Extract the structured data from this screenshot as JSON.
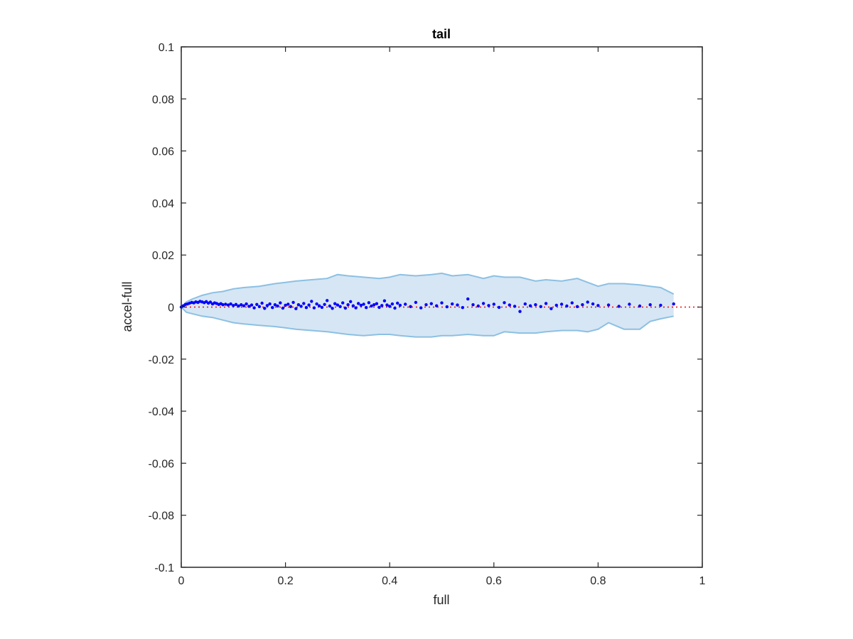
{
  "chart_data": {
    "type": "scatter",
    "title": "tail",
    "xlabel": "full",
    "ylabel": "accel-full",
    "xlim": [
      0,
      1
    ],
    "ylim": [
      -0.1,
      0.1
    ],
    "xticks": [
      0,
      0.2,
      0.4,
      0.6,
      0.8,
      1
    ],
    "xtick_labels": [
      "0",
      "0.2",
      "0.4",
      "0.6",
      "0.8",
      "1"
    ],
    "yticks": [
      -0.1,
      -0.08,
      -0.06,
      -0.04,
      -0.02,
      0,
      0.02,
      0.04,
      0.06,
      0.08,
      0.1
    ],
    "ytick_labels": [
      "-0.1",
      "-0.08",
      "-0.06",
      "-0.04",
      "-0.02",
      "0",
      "0.02",
      "0.04",
      "0.06",
      "0.08",
      "0.1"
    ],
    "grid": false,
    "reference_line": {
      "y": 0,
      "style": "dotted",
      "color": "#ff0000"
    },
    "band": {
      "fill_color": "#d6e6f4",
      "edge_color": "#8cc0e3",
      "x": [
        0,
        0.01,
        0.02,
        0.04,
        0.06,
        0.08,
        0.1,
        0.12,
        0.15,
        0.18,
        0.2,
        0.22,
        0.25,
        0.28,
        0.3,
        0.32,
        0.35,
        0.38,
        0.4,
        0.42,
        0.45,
        0.48,
        0.5,
        0.52,
        0.55,
        0.58,
        0.6,
        0.62,
        0.65,
        0.68,
        0.7,
        0.73,
        0.76,
        0.78,
        0.8,
        0.82,
        0.85,
        0.88,
        0.9,
        0.92,
        0.945
      ],
      "upper": [
        0,
        0.002,
        0.003,
        0.0045,
        0.0055,
        0.006,
        0.007,
        0.0075,
        0.008,
        0.009,
        0.0095,
        0.01,
        0.0105,
        0.011,
        0.0125,
        0.012,
        0.0115,
        0.011,
        0.0115,
        0.0125,
        0.012,
        0.0125,
        0.013,
        0.012,
        0.0125,
        0.011,
        0.012,
        0.0115,
        0.0115,
        0.01,
        0.0105,
        0.01,
        0.011,
        0.0095,
        0.008,
        0.009,
        0.009,
        0.0085,
        0.008,
        0.0075,
        0.005
      ],
      "lower": [
        0,
        -0.002,
        -0.0025,
        -0.0035,
        -0.004,
        -0.005,
        -0.006,
        -0.0065,
        -0.007,
        -0.0075,
        -0.008,
        -0.0085,
        -0.009,
        -0.0095,
        -0.01,
        -0.0105,
        -0.011,
        -0.0105,
        -0.0105,
        -0.011,
        -0.0115,
        -0.0115,
        -0.011,
        -0.011,
        -0.0105,
        -0.011,
        -0.011,
        -0.0095,
        -0.01,
        -0.01,
        -0.0095,
        -0.009,
        -0.009,
        -0.0095,
        -0.0085,
        -0.006,
        -0.0085,
        -0.0085,
        -0.0055,
        -0.0045,
        -0.0035
      ]
    },
    "series": [
      {
        "color": "#0000ff",
        "x": [
          0,
          0.004,
          0.008,
          0.012,
          0.016,
          0.02,
          0.024,
          0.028,
          0.032,
          0.036,
          0.04,
          0.044,
          0.048,
          0.052,
          0.056,
          0.06,
          0.064,
          0.068,
          0.072,
          0.076,
          0.08,
          0.085,
          0.09,
          0.095,
          0.1,
          0.105,
          0.11,
          0.115,
          0.12,
          0.125,
          0.13,
          0.135,
          0.14,
          0.145,
          0.15,
          0.155,
          0.16,
          0.165,
          0.17,
          0.175,
          0.18,
          0.185,
          0.19,
          0.195,
          0.2,
          0.205,
          0.21,
          0.215,
          0.22,
          0.225,
          0.23,
          0.235,
          0.24,
          0.245,
          0.25,
          0.255,
          0.26,
          0.265,
          0.27,
          0.275,
          0.28,
          0.285,
          0.29,
          0.295,
          0.3,
          0.305,
          0.31,
          0.315,
          0.32,
          0.325,
          0.33,
          0.335,
          0.34,
          0.345,
          0.35,
          0.355,
          0.36,
          0.365,
          0.37,
          0.375,
          0.38,
          0.385,
          0.39,
          0.395,
          0.4,
          0.405,
          0.41,
          0.415,
          0.42,
          0.43,
          0.44,
          0.45,
          0.46,
          0.47,
          0.48,
          0.49,
          0.5,
          0.51,
          0.52,
          0.53,
          0.54,
          0.55,
          0.56,
          0.57,
          0.58,
          0.59,
          0.6,
          0.61,
          0.62,
          0.63,
          0.64,
          0.65,
          0.66,
          0.67,
          0.68,
          0.69,
          0.7,
          0.71,
          0.72,
          0.73,
          0.74,
          0.75,
          0.76,
          0.77,
          0.78,
          0.79,
          0.8,
          0.82,
          0.84,
          0.86,
          0.88,
          0.9,
          0.92,
          0.945
        ],
        "y": [
          0,
          0.0005,
          0.001,
          0.0012,
          0.0015,
          0.0018,
          0.0016,
          0.002,
          0.0018,
          0.0022,
          0.002,
          0.0017,
          0.0021,
          0.0015,
          0.0019,
          0.0012,
          0.0016,
          0.0014,
          0.001,
          0.0013,
          0.0009,
          0.0011,
          0.0008,
          0.0012,
          0.0006,
          0.001,
          0.0004,
          0.0009,
          0.0005,
          0.0012,
          0.0003,
          0.0008,
          -0.0003,
          0.001,
          0.0002,
          0.0015,
          -0.0005,
          0.0006,
          0.0012,
          -0.0002,
          0.0009,
          0.0004,
          0.0016,
          -0.0004,
          0.0007,
          0.0011,
          0.0002,
          0.0018,
          -0.0006,
          0.0009,
          0.0003,
          0.0014,
          -0.0002,
          0.0008,
          0.0022,
          -0.0003,
          0.0012,
          0.0005,
          -0.0001,
          0.001,
          0.0025,
          0.0004,
          -0.0005,
          0.0013,
          0.0008,
          0.0002,
          0.0016,
          -0.0004,
          0.0009,
          0.0021,
          0.0005,
          -0.0003,
          0.0014,
          0.0007,
          0.0011,
          -0.0002,
          0.0017,
          0.0004,
          0.0009,
          0.0013,
          -0.0001,
          0.0006,
          0.0024,
          0.0008,
          0.0003,
          0.0012,
          -0.0004,
          0.0015,
          0.0007,
          0.0011,
          0.0002,
          0.0018,
          -0.0003,
          0.0009,
          0.0013,
          0.0005,
          0.0016,
          0.0001,
          0.0012,
          0.0008,
          -0.0002,
          0.0031,
          0.0009,
          0.0004,
          0.0014,
          0.0006,
          0.0011,
          -0.0001,
          0.0017,
          0.0008,
          0.0003,
          -0.0017,
          0.0012,
          0.0005,
          0.0009,
          0.0002,
          0.0014,
          -0.0006,
          0.0007,
          0.0011,
          0.0004,
          0.0016,
          0.0002,
          0.0009,
          0.0019,
          0.0012,
          0.0006,
          0.0008,
          0.0003,
          0.0011,
          0.0004,
          0.0009,
          0.0007,
          0.0012
        ]
      }
    ]
  }
}
